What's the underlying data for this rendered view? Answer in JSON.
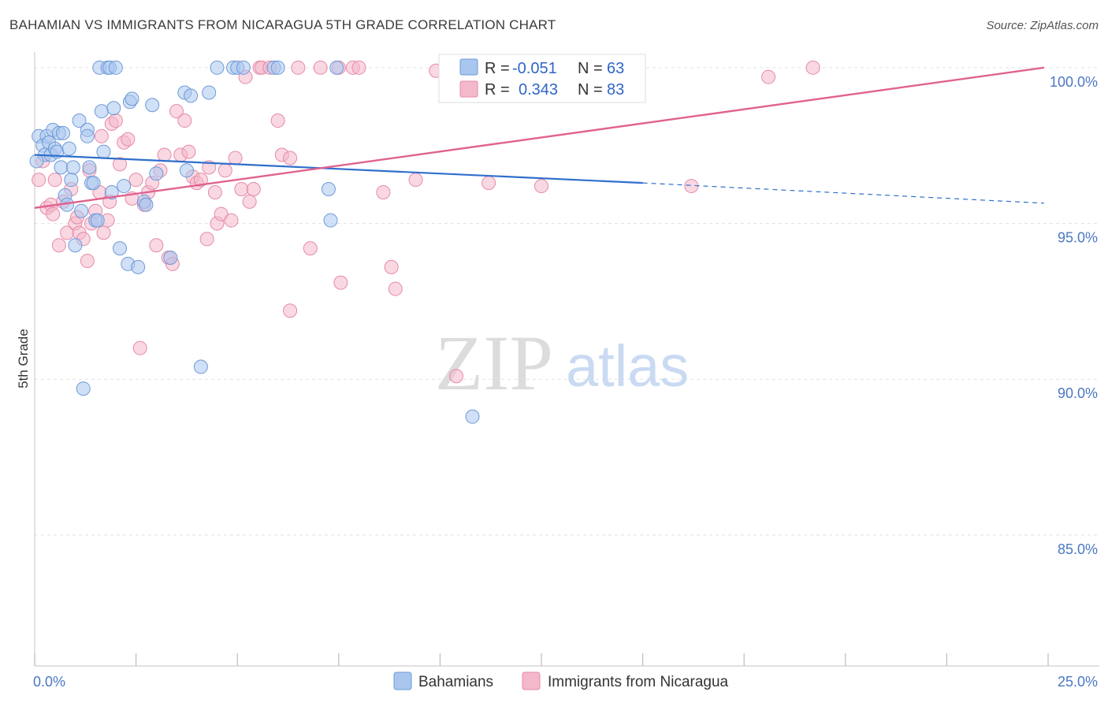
{
  "header": {
    "title": "BAHAMIAN VS IMMIGRANTS FROM NICARAGUA 5TH GRADE CORRELATION CHART",
    "source": "Source: ZipAtlas.com"
  },
  "colors": {
    "blue_fill": "#a9c6ee",
    "blue_stroke": "#6f9ad8",
    "blue_line": "#2f6fcc",
    "pink_fill": "#f4b8cb",
    "pink_stroke": "#e68aa8",
    "pink_line": "#e0628e",
    "tick": "#4a77c4"
  },
  "chart_data": {
    "type": "scatter",
    "title": "BAHAMIAN VS IMMIGRANTS FROM NICARAGUA 5TH GRADE CORRELATION CHART",
    "xlabel": "",
    "ylabel": "5th Grade",
    "xlim": [
      0,
      25
    ],
    "ylim": [
      80.8,
      100.4
    ],
    "x_tick_labels": [
      {
        "value": 0,
        "label": "0.0%"
      },
      {
        "value": 25,
        "label": "25.0%"
      }
    ],
    "y_tick_labels": [
      {
        "value": 100,
        "label": "100.0%"
      },
      {
        "value": 95,
        "label": "95.0%"
      },
      {
        "value": 90,
        "label": "90.0%"
      },
      {
        "value": 85,
        "label": "85.0%"
      }
    ],
    "watermark": {
      "zip": "ZIP",
      "atlas": "atlas"
    },
    "stats": [
      {
        "r_label": "R =",
        "r_value": "-0.051",
        "n_label": "N =",
        "n_value": "63"
      },
      {
        "r_label": "R =",
        "r_value": "0.343",
        "n_label": "N =",
        "n_value": "83"
      }
    ],
    "legend": [
      "Bahamians",
      "Immigrants from Nicaragua"
    ],
    "series": [
      {
        "name": "Bahamians",
        "trend": {
          "x0": 0,
          "y0": 97.2,
          "x1": 15,
          "y1": 96.3,
          "dash_to_x": 24.9,
          "dash_to_y": 95.65
        },
        "points": [
          [
            0.1,
            97.8
          ],
          [
            0.2,
            97.5
          ],
          [
            0.25,
            97.2
          ],
          [
            0.3,
            97.8
          ],
          [
            0.35,
            97.6
          ],
          [
            0.4,
            97.2
          ],
          [
            0.45,
            98.0
          ],
          [
            0.5,
            97.4
          ],
          [
            0.55,
            97.3
          ],
          [
            0.6,
            97.9
          ],
          [
            0.65,
            96.8
          ],
          [
            0.7,
            97.9
          ],
          [
            0.75,
            95.9
          ],
          [
            0.8,
            95.6
          ],
          [
            0.85,
            97.4
          ],
          [
            0.9,
            96.4
          ],
          [
            0.95,
            96.8
          ],
          [
            1.0,
            94.3
          ],
          [
            1.1,
            98.3
          ],
          [
            1.15,
            95.4
          ],
          [
            1.3,
            98.0
          ],
          [
            1.3,
            97.8
          ],
          [
            1.35,
            96.8
          ],
          [
            1.4,
            96.3
          ],
          [
            1.45,
            96.3
          ],
          [
            1.5,
            95.1
          ],
          [
            1.55,
            95.1
          ],
          [
            1.6,
            100.0
          ],
          [
            1.65,
            98.6
          ],
          [
            1.7,
            97.3
          ],
          [
            1.8,
            100.0
          ],
          [
            1.85,
            100.0
          ],
          [
            1.9,
            96.0
          ],
          [
            1.95,
            98.7
          ],
          [
            2.0,
            100.0
          ],
          [
            2.1,
            94.2
          ],
          [
            2.3,
            93.7
          ],
          [
            2.35,
            98.9
          ],
          [
            2.4,
            99.0
          ],
          [
            2.55,
            93.6
          ],
          [
            2.7,
            95.7
          ],
          [
            2.75,
            95.6
          ],
          [
            2.9,
            98.8
          ],
          [
            3.0,
            96.6
          ],
          [
            3.35,
            93.9
          ],
          [
            3.7,
            99.2
          ],
          [
            3.75,
            96.7
          ],
          [
            3.85,
            99.1
          ],
          [
            4.1,
            90.4
          ],
          [
            4.3,
            99.2
          ],
          [
            4.5,
            100.0
          ],
          [
            4.9,
            100.0
          ],
          [
            5.0,
            100.0
          ],
          [
            5.15,
            100.0
          ],
          [
            5.9,
            100.0
          ],
          [
            6.0,
            100.0
          ],
          [
            7.25,
            96.1
          ],
          [
            7.3,
            95.1
          ],
          [
            7.45,
            100.0
          ],
          [
            10.8,
            88.8
          ],
          [
            2.2,
            96.2
          ],
          [
            1.2,
            89.7
          ],
          [
            0.05,
            97.0
          ]
        ]
      },
      {
        "name": "Immigrants from Nicaragua",
        "trend": {
          "x0": 0,
          "y0": 95.5,
          "x1": 24.9,
          "y1": 100.0
        },
        "points": [
          [
            0.1,
            96.4
          ],
          [
            0.2,
            97.0
          ],
          [
            0.3,
            95.5
          ],
          [
            0.4,
            95.6
          ],
          [
            0.45,
            95.3
          ],
          [
            0.5,
            96.4
          ],
          [
            0.6,
            94.3
          ],
          [
            0.7,
            95.7
          ],
          [
            0.8,
            94.7
          ],
          [
            0.9,
            96.1
          ],
          [
            1.0,
            95.0
          ],
          [
            1.05,
            95.2
          ],
          [
            1.1,
            94.7
          ],
          [
            1.2,
            94.5
          ],
          [
            1.3,
            93.8
          ],
          [
            1.35,
            96.7
          ],
          [
            1.4,
            95.0
          ],
          [
            1.5,
            95.4
          ],
          [
            1.6,
            96.0
          ],
          [
            1.65,
            97.8
          ],
          [
            1.7,
            94.7
          ],
          [
            1.8,
            95.1
          ],
          [
            1.85,
            95.7
          ],
          [
            1.9,
            98.2
          ],
          [
            2.0,
            98.3
          ],
          [
            2.1,
            96.9
          ],
          [
            2.2,
            97.6
          ],
          [
            2.3,
            97.7
          ],
          [
            2.4,
            95.8
          ],
          [
            2.5,
            96.4
          ],
          [
            2.6,
            91.0
          ],
          [
            2.7,
            95.6
          ],
          [
            2.8,
            96.0
          ],
          [
            2.9,
            96.3
          ],
          [
            3.0,
            94.3
          ],
          [
            3.1,
            96.7
          ],
          [
            3.2,
            97.2
          ],
          [
            3.3,
            93.9
          ],
          [
            3.4,
            93.7
          ],
          [
            3.5,
            98.6
          ],
          [
            3.6,
            97.2
          ],
          [
            3.7,
            98.3
          ],
          [
            3.8,
            97.3
          ],
          [
            3.9,
            96.5
          ],
          [
            4.0,
            96.3
          ],
          [
            4.1,
            96.4
          ],
          [
            4.25,
            94.5
          ],
          [
            4.3,
            96.8
          ],
          [
            4.45,
            96.0
          ],
          [
            4.5,
            95.0
          ],
          [
            4.6,
            95.3
          ],
          [
            4.7,
            96.7
          ],
          [
            4.85,
            95.1
          ],
          [
            4.95,
            97.1
          ],
          [
            5.1,
            96.1
          ],
          [
            5.2,
            99.7
          ],
          [
            5.3,
            95.7
          ],
          [
            5.4,
            96.1
          ],
          [
            5.55,
            100.0
          ],
          [
            5.6,
            100.0
          ],
          [
            5.8,
            100.0
          ],
          [
            6.0,
            98.3
          ],
          [
            6.1,
            97.2
          ],
          [
            6.3,
            97.1
          ],
          [
            6.3,
            92.2
          ],
          [
            6.5,
            100.0
          ],
          [
            6.8,
            94.2
          ],
          [
            7.05,
            100.0
          ],
          [
            7.5,
            100.0
          ],
          [
            7.55,
            93.1
          ],
          [
            7.85,
            100.0
          ],
          [
            8.0,
            100.0
          ],
          [
            8.6,
            96.0
          ],
          [
            8.8,
            93.6
          ],
          [
            8.9,
            92.9
          ],
          [
            9.4,
            96.4
          ],
          [
            9.9,
            99.9
          ],
          [
            10.4,
            90.1
          ],
          [
            11.2,
            96.3
          ],
          [
            12.5,
            96.2
          ],
          [
            16.2,
            96.2
          ],
          [
            18.1,
            99.7
          ],
          [
            19.2,
            100.0
          ]
        ]
      }
    ]
  }
}
